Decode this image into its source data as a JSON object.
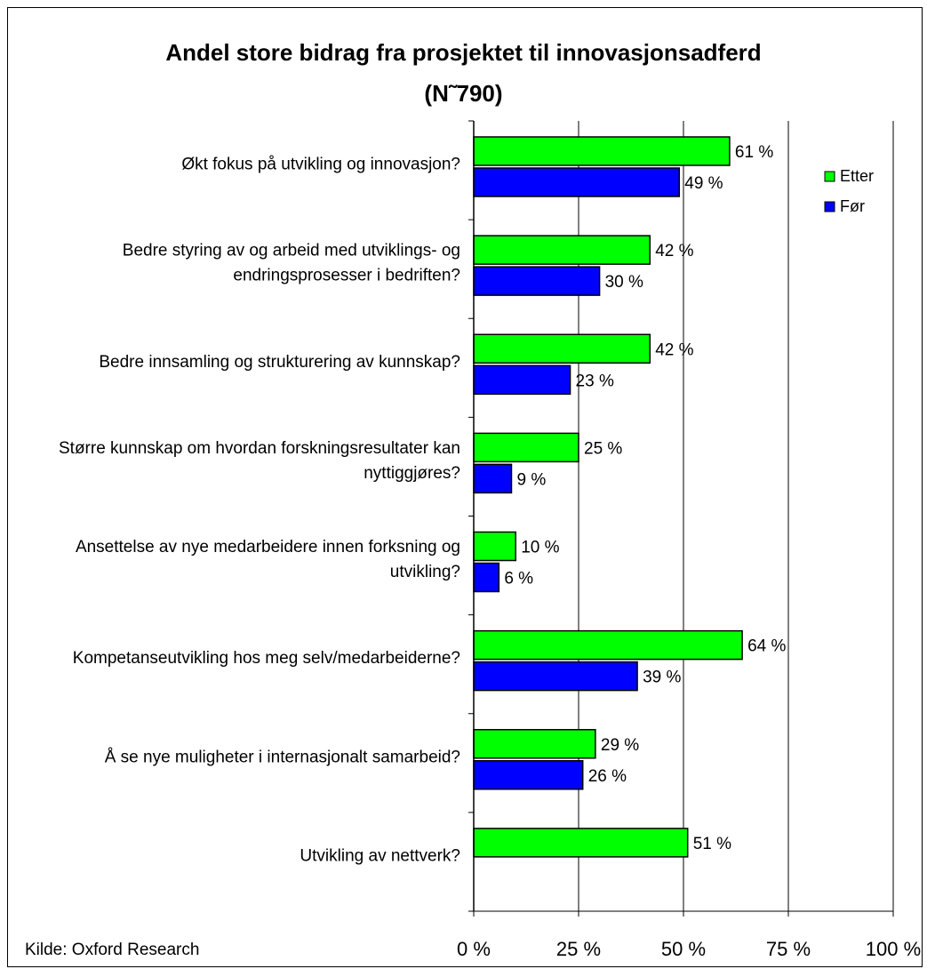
{
  "chart_data": {
    "type": "bar",
    "orientation": "horizontal",
    "title": "Andel store bidrag fra prosjektet til innovasjonsadferd",
    "subtitle": "(N˜790)",
    "categories": [
      [
        "Økt fokus på utvikling og innovasjon?"
      ],
      [
        "Bedre styring av og arbeid med utviklings- og",
        "endringsprosesser i bedriften?"
      ],
      [
        "Bedre innsamling og strukturering av kunnskap?"
      ],
      [
        "Større kunnskap om hvordan forskningsresultater kan",
        "nyttiggjøres?"
      ],
      [
        "Ansettelse av nye medarbeidere innen forksning og",
        "utvikling?"
      ],
      [
        "Kompetanseutvikling hos meg selv/medarbeiderne?"
      ],
      [
        "Å se nye muligheter i internasjonalt samarbeid?"
      ],
      [
        "Utvikling av nettverk?"
      ]
    ],
    "series": [
      {
        "name": "Etter",
        "color": "#00FF00",
        "values": [
          61,
          42,
          42,
          25,
          10,
          64,
          29,
          51
        ],
        "labels": [
          "61 %",
          "42 %",
          "42 %",
          "25 %",
          "10 %",
          "64 %",
          "29 %",
          "51 %"
        ]
      },
      {
        "name": "Før",
        "color": "#0000FF",
        "values": [
          49,
          30,
          23,
          9,
          6,
          39,
          26,
          null
        ],
        "labels": [
          "49 %",
          "30 %",
          "23 %",
          "9 %",
          "6 %",
          "39 %",
          "26 %",
          ""
        ]
      }
    ],
    "xlim": [
      0,
      100
    ],
    "xticks": [
      0,
      25,
      50,
      75,
      100
    ],
    "xtick_labels": [
      "0 %",
      "25 %",
      "50 %",
      "75 %",
      "100 %"
    ],
    "grid": "vertical",
    "legend_position": "top-right"
  },
  "source": "Kilde: Oxford Research"
}
